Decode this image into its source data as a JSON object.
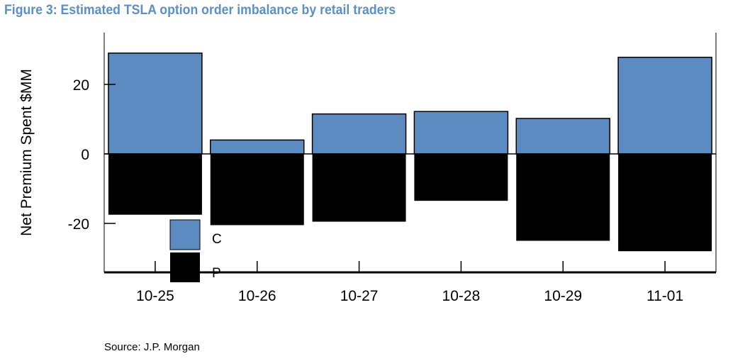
{
  "title": "Figure 3: Estimated TSLA option order imbalance by retail traders",
  "source": "Source: J.P. Morgan",
  "colors": {
    "calls": "#5b8bc0",
    "puts": "#000000",
    "title": "#5b8fc7"
  },
  "chart_data": {
    "type": "bar",
    "stacked": true,
    "title": "",
    "xlabel": "",
    "ylabel": "Net Premium Spent $MM",
    "categories": [
      "10-25",
      "10-26",
      "10-27",
      "10-28",
      "10-29",
      "11-01"
    ],
    "series": [
      {
        "name": "C",
        "values": [
          29,
          4,
          11.5,
          12.2,
          10.2,
          27.8
        ]
      },
      {
        "name": "P",
        "values": [
          -17.5,
          -20.5,
          -19.5,
          -13.5,
          -25,
          -28
        ]
      }
    ],
    "yticks": [
      20,
      0,
      -20
    ],
    "ylim": [
      -34,
      35
    ],
    "legend": "inside-bottom-left",
    "grid": false
  }
}
